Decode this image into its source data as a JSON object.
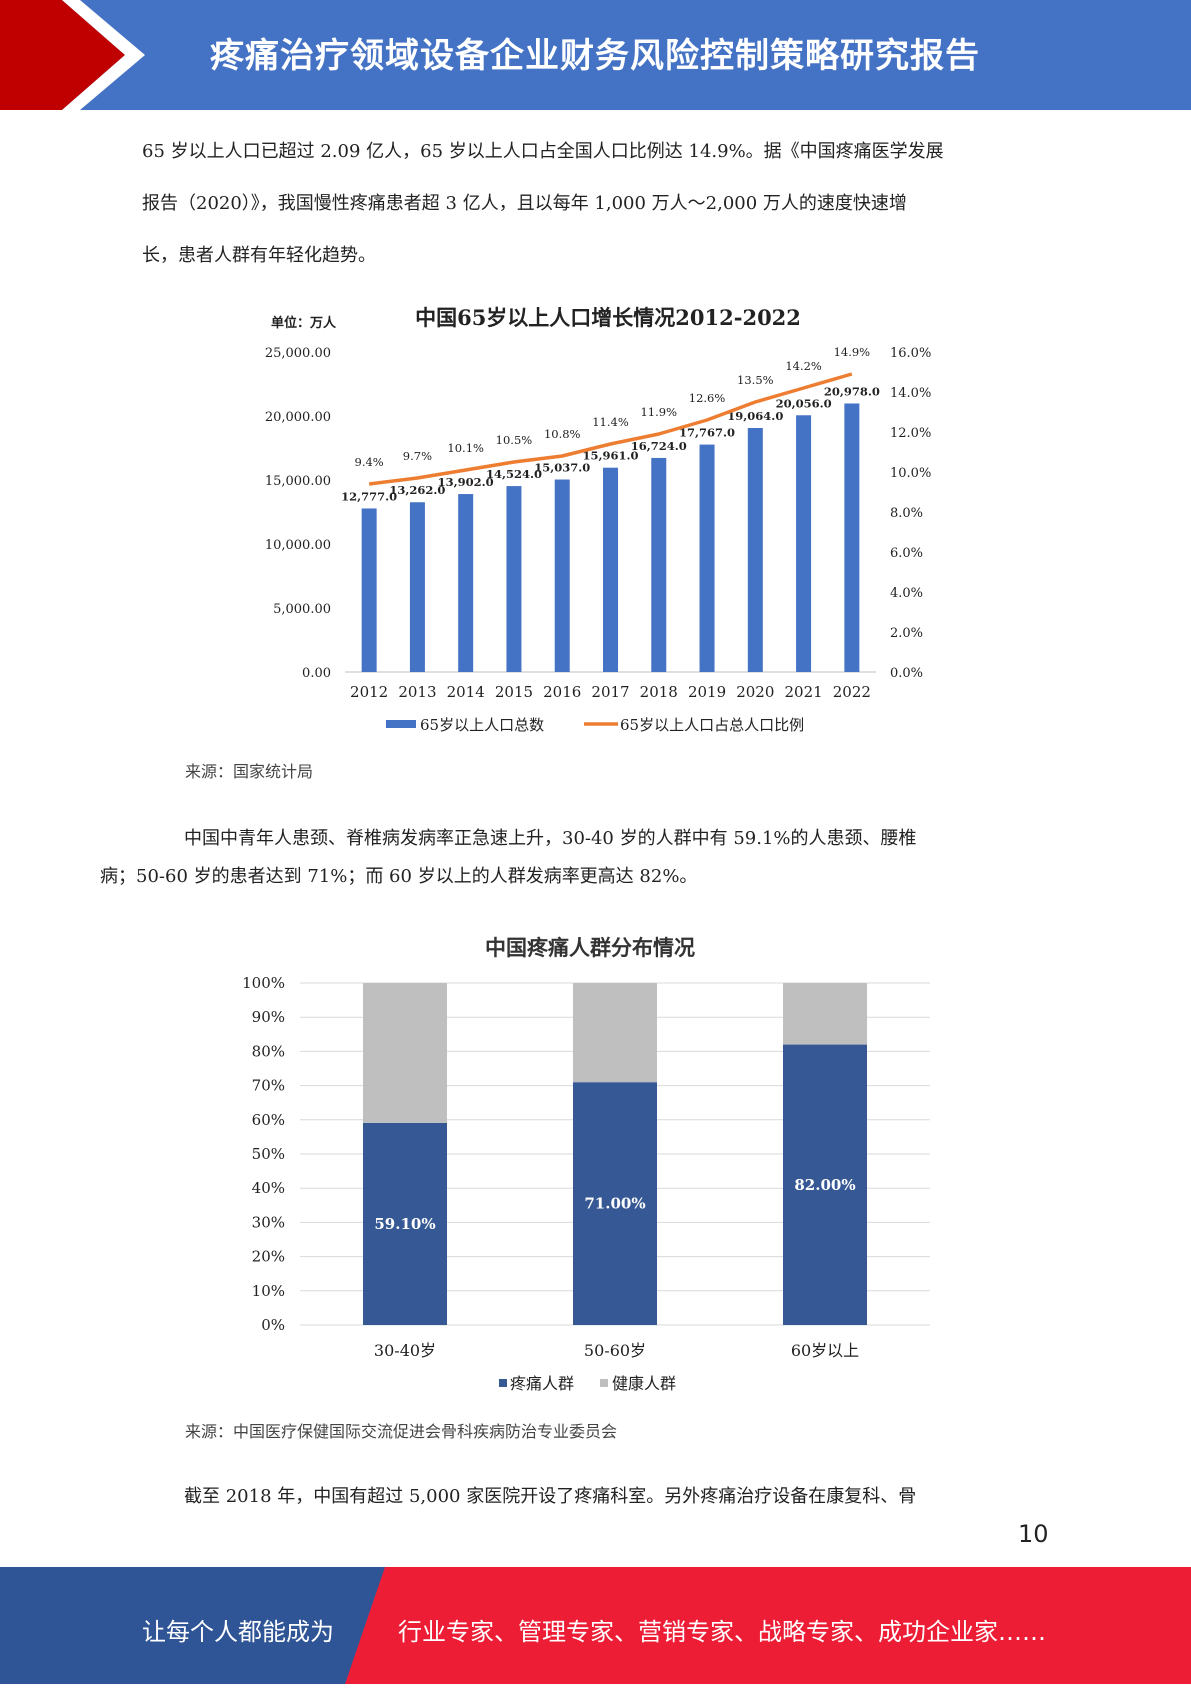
{
  "header": {
    "title": "疼痛治疗领域设备企业财务风险控制策略研究报告"
  },
  "colors": {
    "header_blue": "#4472C4",
    "header_red": "#C00000",
    "footer_blue": "#2F5597",
    "footer_red": "#EE1D36",
    "bar_blue": "#4472C4",
    "line_orange": "#ED7D31",
    "stack_blue": "#365894",
    "stack_gray": "#BFBFBF"
  },
  "paragraphs": {
    "p1_lines": [
      "65 岁以上人口已超过 2.09 亿人，65 岁以上人口占全国人口比例达 14.9%。据《中国疼痛医学发展",
      "报告（2020）》，我国慢性疼痛患者超 3 亿人，且以每年 1,000 万人～2,000 万人的速度快速增",
      "长，患者人群有年轻化趋势。"
    ],
    "p2_lines": [
      "中国中青年人患颈、脊椎病发病率正急速上升，30-40 岁的人群中有 59.1%的人患颈、腰椎",
      "病；50-60 岁的患者达到 71%；而 60 岁以上的人群发病率更高达 82%。"
    ],
    "p3": "截至 2018 年，中国有超过 5,000 家医院开设了疼痛科室。另外疼痛治疗设备在康复科、骨"
  },
  "chart_data": [
    {
      "type": "bar",
      "title": "中国65岁以上人口增长情况2012-2022",
      "unit_label": "单位：万人",
      "categories": [
        "2012",
        "2013",
        "2014",
        "2015",
        "2016",
        "2017",
        "2018",
        "2019",
        "2020",
        "2021",
        "2022"
      ],
      "series": [
        {
          "name": "65岁以上人口总数",
          "type": "bar",
          "axis": "left",
          "values": [
            12777.0,
            13262.0,
            13902.0,
            14524.0,
            15037.0,
            15961.0,
            16724.0,
            17767.0,
            19064.0,
            20056.0,
            20978.0
          ],
          "labels": [
            "12,777.0",
            "13,262.0",
            "13,902.0",
            "14,524.0",
            "15,037.0",
            "15,961.0",
            "16,724.0",
            "17,767.0",
            "19,064.0",
            "20,056.0",
            "20,978.0"
          ]
        },
        {
          "name": "65岁以上人口占总人口比例",
          "type": "line",
          "axis": "right",
          "values": [
            9.4,
            9.7,
            10.1,
            10.5,
            10.8,
            11.4,
            11.9,
            12.6,
            13.5,
            14.2,
            14.9
          ],
          "labels": [
            "9.4%",
            "9.7%",
            "10.1%",
            "10.5%",
            "10.8%",
            "11.4%",
            "11.9%",
            "12.6%",
            "13.5%",
            "14.2%",
            "14.9%"
          ]
        }
      ],
      "ylim_left": [
        0,
        25000
      ],
      "yticks_left": [
        "0.00",
        "5,000.00",
        "10,000.00",
        "15,000.00",
        "20,000.00",
        "25,000.00"
      ],
      "ylim_right": [
        0,
        16
      ],
      "yticks_right": [
        "0.0%",
        "2.0%",
        "4.0%",
        "6.0%",
        "8.0%",
        "10.0%",
        "12.0%",
        "14.0%",
        "16.0%"
      ],
      "legend_position": "bottom",
      "source": "来源：国家统计局"
    },
    {
      "type": "bar",
      "stacked": true,
      "title": "中国疼痛人群分布情况",
      "categories": [
        "30-40岁",
        "50-60岁",
        "60岁以上"
      ],
      "series": [
        {
          "name": "疼痛人群",
          "values": [
            59.1,
            71.0,
            82.0
          ],
          "labels": [
            "59.10%",
            "71.00%",
            "82.00%"
          ]
        },
        {
          "name": "健康人群",
          "values": [
            40.9,
            29.0,
            18.0
          ]
        }
      ],
      "ylim": [
        0,
        100
      ],
      "yticks": [
        "0%",
        "10%",
        "20%",
        "30%",
        "40%",
        "50%",
        "60%",
        "70%",
        "80%",
        "90%",
        "100%"
      ],
      "legend_position": "bottom",
      "source": "来源：中国医疗保健国际交流促进会骨科疾病防治专业委员会"
    }
  ],
  "page_number": "10",
  "footer": {
    "left": "让每个人都能成为",
    "right": "行业专家、管理专家、营销专家、战略专家、成功企业家……"
  }
}
